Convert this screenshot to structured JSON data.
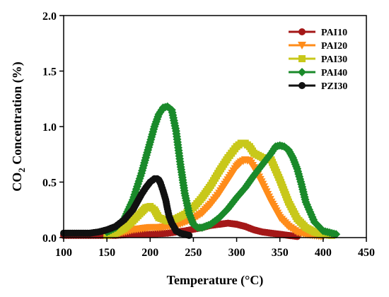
{
  "chart_data": {
    "type": "line",
    "title": "",
    "xlabel": "Temperature (°C)",
    "ylabel_main": "CO",
    "ylabel_sub": "2",
    "ylabel_rest": " Concentration (%)",
    "xlim": [
      100,
      450
    ],
    "ylim": [
      0,
      2.0
    ],
    "x_ticks": [
      100,
      150,
      200,
      250,
      300,
      350,
      400,
      450
    ],
    "y_ticks": [
      0.0,
      0.5,
      1.0,
      1.5,
      2.0
    ],
    "x_tick_labels": [
      "100",
      "150",
      "200",
      "250",
      "300",
      "350",
      "400",
      "450"
    ],
    "y_tick_labels": [
      "0.0",
      "0.5",
      "1.0",
      "1.5",
      "2.0"
    ],
    "grid": false,
    "legend_position": "top-right",
    "series": [
      {
        "name": "PAI10",
        "color": "#a41818",
        "marker": "circle",
        "x": [
          100,
          120,
          140,
          160,
          180,
          200,
          220,
          240,
          260,
          270,
          280,
          290,
          300,
          310,
          320,
          330,
          340,
          350,
          360,
          370
        ],
        "y": [
          0.02,
          0.02,
          0.02,
          0.02,
          0.03,
          0.03,
          0.04,
          0.06,
          0.09,
          0.11,
          0.12,
          0.13,
          0.12,
          0.1,
          0.07,
          0.05,
          0.04,
          0.03,
          0.02,
          0.01
        ]
      },
      {
        "name": "PAI20",
        "color": "#ff8c1a",
        "marker": "triangle-down",
        "x": [
          150,
          160,
          170,
          180,
          190,
          200,
          210,
          220,
          230,
          240,
          250,
          260,
          270,
          280,
          290,
          300,
          305,
          310,
          315,
          320,
          330,
          340,
          350,
          360,
          370,
          380,
          390,
          400
        ],
        "y": [
          0.02,
          0.03,
          0.05,
          0.07,
          0.08,
          0.09,
          0.09,
          0.1,
          0.11,
          0.14,
          0.17,
          0.22,
          0.3,
          0.4,
          0.52,
          0.64,
          0.68,
          0.7,
          0.69,
          0.63,
          0.48,
          0.32,
          0.18,
          0.1,
          0.05,
          0.03,
          0.02,
          0.01
        ]
      },
      {
        "name": "PAI30",
        "color": "#c8c81a",
        "marker": "square",
        "x": [
          150,
          160,
          170,
          180,
          190,
          195,
          200,
          205,
          210,
          220,
          230,
          240,
          250,
          260,
          270,
          280,
          290,
          300,
          305,
          310,
          315,
          320,
          330,
          340,
          350,
          360,
          370,
          380,
          390,
          400,
          410
        ],
        "y": [
          0.02,
          0.04,
          0.08,
          0.15,
          0.23,
          0.27,
          0.28,
          0.25,
          0.18,
          0.15,
          0.17,
          0.21,
          0.27,
          0.36,
          0.47,
          0.6,
          0.72,
          0.82,
          0.85,
          0.85,
          0.82,
          0.76,
          0.72,
          0.7,
          0.52,
          0.32,
          0.17,
          0.09,
          0.05,
          0.03,
          0.02
        ]
      },
      {
        "name": "PAI40",
        "color": "#1a8a2a",
        "marker": "diamond",
        "x": [
          150,
          160,
          170,
          180,
          190,
          200,
          205,
          210,
          215,
          220,
          225,
          230,
          235,
          240,
          245,
          250,
          255,
          260,
          270,
          280,
          290,
          300,
          310,
          320,
          330,
          340,
          345,
          350,
          355,
          360,
          365,
          370,
          375,
          380,
          390,
          400,
          410,
          415
        ],
        "y": [
          0.05,
          0.09,
          0.17,
          0.34,
          0.58,
          0.86,
          1.0,
          1.11,
          1.17,
          1.18,
          1.15,
          0.96,
          0.66,
          0.4,
          0.22,
          0.12,
          0.09,
          0.09,
          0.12,
          0.18,
          0.26,
          0.36,
          0.45,
          0.56,
          0.66,
          0.76,
          0.82,
          0.83,
          0.82,
          0.79,
          0.72,
          0.62,
          0.48,
          0.32,
          0.14,
          0.06,
          0.04,
          0.03
        ]
      },
      {
        "name": "PZI30",
        "color": "#111111",
        "marker": "circle",
        "x": [
          100,
          110,
          120,
          130,
          140,
          150,
          160,
          170,
          180,
          185,
          190,
          195,
          200,
          205,
          208,
          210,
          212,
          215,
          218,
          220,
          222,
          225,
          228,
          230,
          235,
          240,
          245
        ],
        "y": [
          0.04,
          0.04,
          0.04,
          0.04,
          0.05,
          0.07,
          0.1,
          0.16,
          0.25,
          0.32,
          0.39,
          0.45,
          0.5,
          0.53,
          0.53,
          0.52,
          0.49,
          0.42,
          0.34,
          0.26,
          0.19,
          0.13,
          0.09,
          0.06,
          0.04,
          0.03,
          0.02
        ]
      }
    ]
  }
}
